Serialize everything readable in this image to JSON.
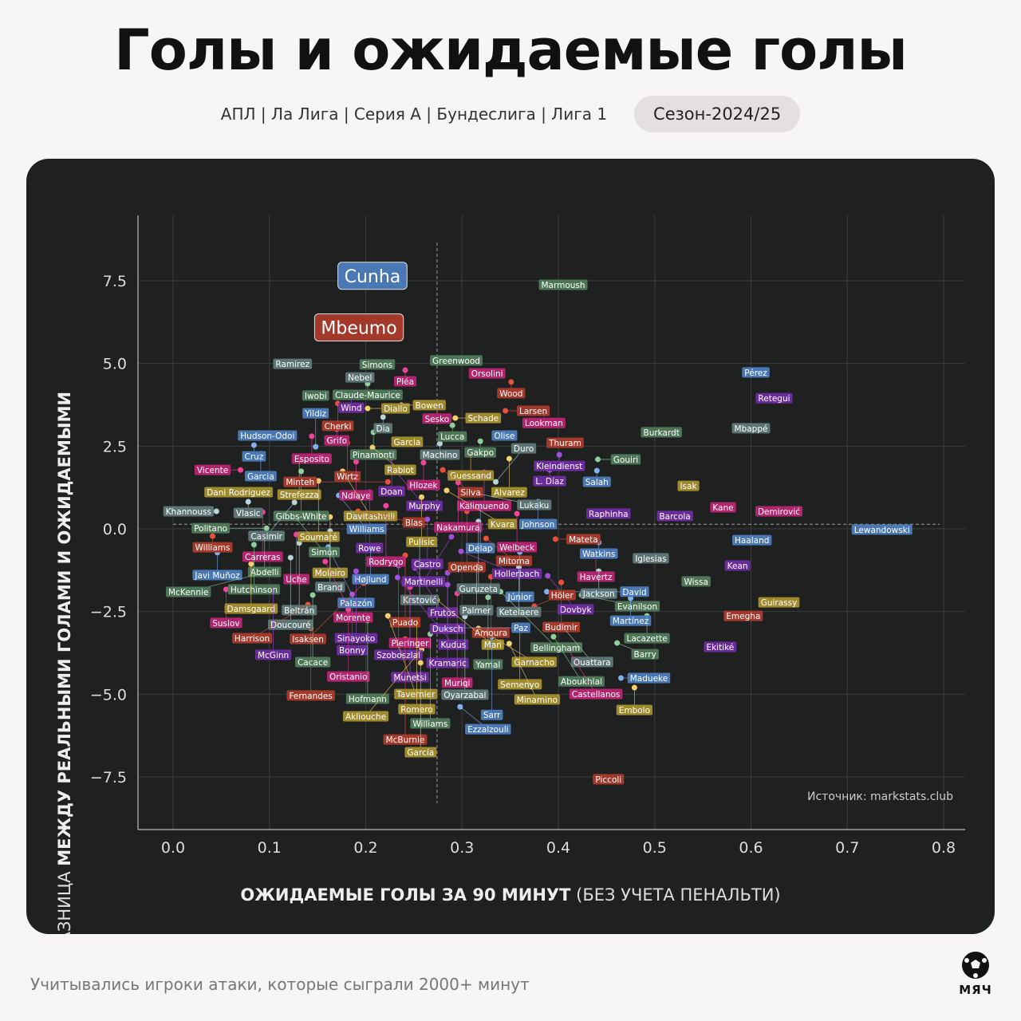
{
  "header": {
    "title": "Голы и ожидаемые голы",
    "leagues": "АПЛ | Ла Лига | Серия А | Бундеслига | Лига 1",
    "season": "Сезон-2024/25"
  },
  "footer": {
    "note": "Учитывались игроки атаки, которые сыграли 2000+ минут",
    "logo": "МЯЧ"
  },
  "chart_data": {
    "type": "scatter",
    "title": "Голы и ожидаемые голы",
    "xlabel_bold": "ОЖИДАЕМЫЕ ГОЛЫ ЗА 90 МИНУТ",
    "xlabel_light": "(БЕЗ УЧЕТА ПЕНАЛЬТИ)",
    "ylabel_light": "РАЗНИЦА ",
    "ylabel_bold": "МЕЖДУ РЕАЛЬНЫМИ ГОЛАМИ И ОЖИДАЕМЫМИ",
    "source": "Источник: markstats.club",
    "xlim": [
      -0.035,
      0.825
    ],
    "ylim": [
      -9.1,
      9.5
    ],
    "xticks": [
      "0.0",
      "0.1",
      "0.2",
      "0.3",
      "0.4",
      "0.5",
      "0.6",
      "0.7",
      "0.8"
    ],
    "xtick_values": [
      0,
      0.1,
      0.2,
      0.3,
      0.4,
      0.5,
      0.6,
      0.7,
      0.8
    ],
    "yticks": [
      "7.5",
      "5.0",
      "2.5",
      "0.0",
      "−2.5",
      "−5.0",
      "−7.5"
    ],
    "ytick_values": [
      7.5,
      5,
      2.5,
      0,
      -2.5,
      -5,
      -7.5
    ],
    "mean_x": 0.274,
    "mean_y": 0.14,
    "grid": true,
    "colors": {
      "r": "#a3392b",
      "b": "#4a78b5",
      "g": "#4c7656",
      "y": "#a08a2e",
      "m": "#b3246f",
      "p": "#6b2c9b",
      "s": "#5c7474"
    },
    "dot_colors": {
      "r": "#e8503a",
      "b": "#7fb0f0",
      "g": "#8fd09a",
      "y": "#f3d06a",
      "m": "#f0449a",
      "p": "#a24ee0",
      "s": "#b9d4d8"
    },
    "highlight": [
      [
        "Cunha",
        0.222,
        7.85,
        "b"
      ],
      [
        "Mbeumo",
        0.208,
        6.29,
        "r"
      ]
    ],
    "points": [
      [
        "Marmoush",
        0.405,
        7.38,
        "g"
      ],
      [
        "Greenwood",
        0.294,
        5.09,
        "g"
      ],
      [
        "Ramirez",
        0.124,
        4.99,
        "s"
      ],
      [
        "Simons",
        0.212,
        4.97,
        "g"
      ],
      [
        "Pléa",
        0.241,
        4.8,
        "m"
      ],
      [
        "Nebel",
        0.194,
        4.58,
        "s"
      ],
      [
        "Claude-Maurice",
        0.202,
        4.39,
        "g"
      ],
      [
        "Orsolini",
        0.326,
        4.7,
        "m"
      ],
      [
        "Wood",
        0.351,
        4.44,
        "r"
      ],
      [
        "Iwobi",
        0.148,
        4.03,
        "g"
      ],
      [
        "Wind",
        0.185,
        4.0,
        "p"
      ],
      [
        "Cherki",
        0.171,
        3.79,
        "r"
      ],
      [
        "Diallo",
        0.202,
        3.64,
        "y"
      ],
      [
        "Bowen",
        0.237,
        3.74,
        "y"
      ],
      [
        "Dia",
        0.218,
        3.38,
        "s"
      ],
      [
        "Sesko",
        0.274,
        3.67,
        "m"
      ],
      [
        "Schade",
        0.293,
        3.35,
        "y"
      ],
      [
        "Lucca",
        0.29,
        3.13,
        "g"
      ],
      [
        "Larsen",
        0.345,
        3.57,
        "r"
      ],
      [
        "Lookman",
        0.385,
        3.54,
        "m"
      ],
      [
        "Pérez",
        0.605,
        4.73,
        "b"
      ],
      [
        "Retegui",
        0.624,
        3.95,
        "p"
      ],
      [
        "Mbappé",
        0.6,
        3.04,
        "s"
      ],
      [
        "Burkardt",
        0.507,
        2.92,
        "g"
      ],
      [
        "Grifo",
        0.17,
        3.01,
        "m"
      ],
      [
        "Pinamonti",
        0.208,
        2.92,
        "g"
      ],
      [
        "Hudson-Odoi",
        0.098,
        2.82,
        "b"
      ],
      [
        "Esposito",
        0.144,
        2.8,
        "m"
      ],
      [
        "Cruz",
        0.084,
        2.53,
        "b"
      ],
      [
        "Yildiz",
        0.148,
        2.48,
        "b"
      ],
      [
        "Wirtz",
        0.181,
        2.6,
        "r"
      ],
      [
        "Rabiot",
        0.207,
        2.46,
        "y"
      ],
      [
        "Garcia",
        0.243,
        2.63,
        "y"
      ],
      [
        "Machino",
        0.277,
        2.58,
        "s"
      ],
      [
        "Gakpo",
        0.319,
        2.65,
        "g"
      ],
      [
        "Olise",
        0.344,
        2.82,
        "b"
      ],
      [
        "Guessand",
        0.309,
        2.29,
        "y"
      ],
      [
        "Thuram",
        0.407,
        2.6,
        "r"
      ],
      [
        "Kleindienst",
        0.401,
        2.24,
        "p"
      ],
      [
        "Garcia",
        0.091,
        2.27,
        "b"
      ],
      [
        "Strefezza",
        0.131,
        2.05,
        "y"
      ],
      [
        "Ndiaye",
        0.19,
        2.03,
        "m"
      ],
      [
        "Doan",
        0.227,
        2.15,
        "p"
      ],
      [
        "Hlozek",
        0.26,
        2.0,
        "m"
      ],
      [
        "Alvarez",
        0.349,
        2.12,
        "y"
      ],
      [
        "Gouiri",
        0.441,
        2.1,
        "g"
      ],
      [
        "Salah",
        0.44,
        1.76,
        "b"
      ],
      [
        "L. Díaz",
        0.391,
        1.78,
        "p"
      ],
      [
        "Vicente",
        0.07,
        1.78,
        "m"
      ],
      [
        "Gibbs-White",
        0.133,
        1.74,
        "g"
      ],
      [
        "Davitashvili",
        0.176,
        1.74,
        "y"
      ],
      [
        "Murphy",
        0.232,
        1.71,
        "p"
      ],
      [
        "Silva",
        0.28,
        1.78,
        "r"
      ],
      [
        "Kalimuendo",
        0.323,
        1.71,
        "m"
      ],
      [
        "Soumaré",
        0.151,
        1.45,
        "y"
      ],
      [
        "Minteh",
        0.223,
        1.42,
        "r"
      ],
      [
        "Nakamura",
        0.296,
        1.4,
        "m"
      ],
      [
        "Duro",
        0.335,
        1.42,
        "s"
      ],
      [
        "Isak",
        0.535,
        1.3,
        "y"
      ],
      [
        "Dani Rodriguez",
        0.097,
        1.11,
        "y"
      ],
      [
        "Williams",
        0.172,
        1.01,
        "b"
      ],
      [
        "Rowe",
        0.204,
        1.11,
        "p"
      ],
      [
        "Pulisic",
        0.258,
        0.96,
        "y"
      ],
      [
        "Kvara",
        0.284,
        1.16,
        "y"
      ],
      [
        "Lukaku",
        0.317,
        1.06,
        "s"
      ],
      [
        "Johnson",
        0.379,
        0.82,
        "b"
      ],
      [
        "Vlasic",
        0.078,
        0.82,
        "s"
      ],
      [
        "Casimir",
        0.126,
        0.8,
        "s"
      ],
      [
        "Rodrygo",
        0.221,
        0.7,
        "m"
      ],
      [
        "Delap",
        0.319,
        0.77,
        "b"
      ],
      [
        "Khannouss",
        0.045,
        0.53,
        "s"
      ],
      [
        "Carreras",
        0.093,
        0.51,
        "m"
      ],
      [
        "Blas",
        0.192,
        0.53,
        "r"
      ],
      [
        "Openda",
        0.305,
        0.53,
        "r"
      ],
      [
        "Raphinha",
        0.452,
        0.46,
        "p"
      ],
      [
        "Barcola",
        0.521,
        0.39,
        "p"
      ],
      [
        "Kane",
        0.571,
        0.65,
        "m"
      ],
      [
        "Demirović",
        0.629,
        0.53,
        "m"
      ],
      [
        "Welbeck",
        0.357,
        0.46,
        "m"
      ],
      [
        "Simon",
        0.128,
        0.31,
        "g"
      ],
      [
        "Moleiro",
        0.163,
        0.36,
        "y"
      ],
      [
        "Castro",
        0.264,
        0.29,
        "p"
      ],
      [
        "Guruzeta",
        0.317,
        0.22,
        "s"
      ],
      [
        "Lewandowski",
        0.736,
        -0.02,
        "b"
      ],
      [
        "Politano",
        0.097,
        0.02,
        "g"
      ],
      [
        "Williams",
        0.041,
        -0.22,
        "r"
      ],
      [
        "Abdelli",
        0.095,
        -0.29,
        "g"
      ],
      [
        "Uche",
        0.128,
        -0.17,
        "m"
      ],
      [
        "Brand",
        0.163,
        -0.07,
        "s"
      ],
      [
        "Martinelli",
        0.289,
        -0.24,
        "p"
      ],
      [
        "Mitoma",
        0.325,
        -0.29,
        "r"
      ],
      [
        "Mateta",
        0.397,
        -0.31,
        "r"
      ],
      [
        "Hutchinson",
        0.084,
        -0.48,
        "g"
      ],
      [
        "Beltrán",
        0.131,
        -0.43,
        "s"
      ],
      [
        "Palazón",
        0.161,
        -0.55,
        "b"
      ],
      [
        "Højlund",
        0.205,
        -0.51,
        "b"
      ],
      [
        "Krstović",
        0.256,
        -0.46,
        "s"
      ],
      [
        "Watkins",
        0.442,
        -0.41,
        "b"
      ],
      [
        "Haaland",
        0.601,
        -0.34,
        "b"
      ],
      [
        "Javi Muñoz",
        0.046,
        -0.72,
        "b"
      ],
      [
        "Doucouré",
        0.122,
        -0.87,
        "s"
      ],
      [
        "Puado",
        0.241,
        -0.8,
        "r"
      ],
      [
        "Hollerbach",
        0.299,
        -0.68,
        "p"
      ],
      [
        "Júnior",
        0.36,
        -0.7,
        "b"
      ],
      [
        "Havertz",
        0.439,
        -0.77,
        "m"
      ],
      [
        "Iglesias",
        0.496,
        -0.89,
        "s"
      ],
      [
        "Damsgaard",
        0.081,
        -1.06,
        "y"
      ],
      [
        "Morente",
        0.158,
        -0.99,
        "m"
      ],
      [
        "Palmer",
        0.315,
        -1.11,
        "s"
      ],
      [
        "Ketelaere",
        0.359,
        -1.16,
        "s"
      ],
      [
        "Kean",
        0.586,
        -1.11,
        "p"
      ],
      [
        "McKennie",
        0.107,
        -1.23,
        "g"
      ],
      [
        "Sinayoko",
        0.19,
        -1.28,
        "p"
      ],
      [
        "Szoboszlai",
        0.234,
        -1.11,
        "p"
      ],
      [
        "Frutos",
        0.251,
        -1.18,
        "p"
      ],
      [
        "Duksch",
        0.285,
        -1.33,
        "p"
      ],
      [
        "Jackson",
        0.442,
        -1.28,
        "s"
      ],
      [
        "Dovbyk",
        0.389,
        -1.42,
        "p"
      ],
      [
        "Amoura",
        0.33,
        -1.45,
        "r"
      ],
      [
        "Wissa",
        0.543,
        -1.59,
        "g"
      ],
      [
        "Budimir",
        0.403,
        -1.62,
        "r"
      ],
      [
        "Isaksen",
        0.198,
        -1.64,
        "r"
      ],
      [
        "Kudus",
        0.233,
        -1.47,
        "p"
      ],
      [
        "Kramaric",
        0.285,
        -1.69,
        "p"
      ],
      [
        "Suslov",
        0.055,
        -1.83,
        "m"
      ],
      [
        "McGinn",
        0.104,
        -1.78,
        "p"
      ],
      [
        "Pieringer",
        0.246,
        -1.76,
        "m"
      ],
      [
        "David",
        0.388,
        -1.9,
        "b"
      ],
      [
        "Evanilson",
        0.424,
        -2.0,
        "g"
      ],
      [
        "Martínez",
        0.475,
        -2.1,
        "b"
      ],
      [
        "Guirassy",
        0.629,
        -2.22,
        "y"
      ],
      [
        "Cacace",
        0.145,
        -2.0,
        "g"
      ],
      [
        "Bonny",
        0.186,
        -1.98,
        "p"
      ],
      [
        "Munetsi",
        0.246,
        -2.12,
        "p"
      ],
      [
        "Man",
        0.274,
        -2.15,
        "y"
      ],
      [
        "Muriqi",
        0.295,
        -1.95,
        "m"
      ],
      [
        "Yamal",
        0.327,
        -2.07,
        "g"
      ],
      [
        "Bellingham",
        0.34,
        -1.9,
        "g"
      ],
      [
        "Höler",
        0.375,
        -2.34,
        "r"
      ],
      [
        "Harrison",
        0.14,
        -2.29,
        "r"
      ],
      [
        "Oristanio",
        0.182,
        -2.44,
        "m"
      ],
      [
        "Lacazette",
        0.492,
        -2.63,
        "g"
      ],
      [
        "Emegha",
        0.592,
        -2.63,
        "r"
      ],
      [
        "Hofmann",
        0.202,
        -2.77,
        "g"
      ],
      [
        "Tavernier",
        0.223,
        -2.63,
        "y"
      ],
      [
        "Romero",
        0.253,
        -2.75,
        "y"
      ],
      [
        "Oyarzabal",
        0.303,
        -2.65,
        "s"
      ],
      [
        "Fernandes",
        0.143,
        -3.01,
        "r"
      ],
      [
        "Garnacho",
        0.317,
        -3.01,
        "y"
      ],
      [
        "Semenyo",
        0.36,
        -3.01,
        "y"
      ],
      [
        "Ouattara",
        0.406,
        -3.01,
        "s"
      ],
      [
        "Paz",
        0.27,
        -2.99,
        "b"
      ],
      [
        "Williams",
        0.267,
        -3.18,
        "g"
      ],
      [
        "McBurnie",
        0.241,
        -3.33,
        "r"
      ],
      [
        "Sarr",
        0.331,
        -3.26,
        "b"
      ],
      [
        "Aboukhlal",
        0.395,
        -3.26,
        "g"
      ],
      [
        "Barry",
        0.461,
        -3.45,
        "g"
      ],
      [
        "Minamino",
        0.349,
        -3.47,
        "y"
      ],
      [
        "Akliouche",
        0.258,
        -3.64,
        "y"
      ],
      [
        "Castellanos",
        0.41,
        -3.64,
        "m"
      ],
      [
        "Ekitiké",
        0.568,
        -3.57,
        "p"
      ],
      [
        "García",
        0.257,
        -4.05,
        "y"
      ],
      [
        "Madueke",
        0.465,
        -4.51,
        "b"
      ],
      [
        "Embolo",
        0.479,
        -4.8,
        "y"
      ],
      [
        "Ezzalzouli",
        0.298,
        -5.38,
        "b"
      ],
      [
        "Piccoli",
        0.452,
        -7.57,
        "r"
      ]
    ]
  }
}
